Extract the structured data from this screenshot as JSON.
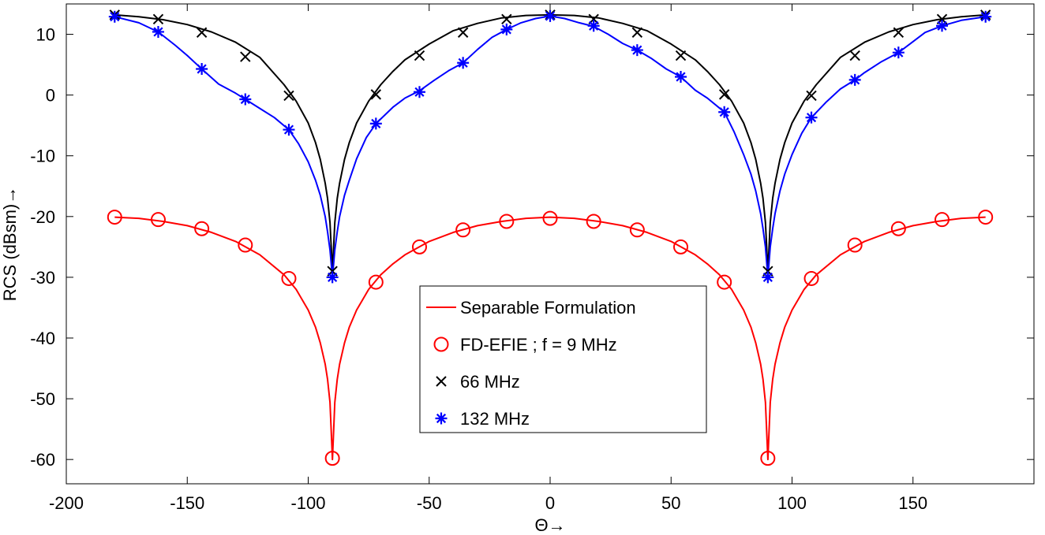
{
  "chart_data": {
    "type": "line",
    "title": "",
    "xlabel": "Θ→",
    "ylabel": "RCS (dBsm)→",
    "xlim": [
      -200,
      200
    ],
    "ylim": [
      -64,
      15
    ],
    "xticks": [
      -200,
      -150,
      -100,
      -50,
      0,
      50,
      100,
      150
    ],
    "xtick_labels": [
      "-200",
      "-150",
      "-100",
      "-50",
      "0",
      "50",
      "100",
      "150"
    ],
    "yticks": [
      10,
      0,
      -10,
      -20,
      -30,
      -40,
      -50,
      -60
    ],
    "ytick_labels": [
      "10",
      "0",
      "-10",
      "-20",
      "-30",
      "-40",
      "-50",
      "-60"
    ],
    "grid": false,
    "legend_position": "center-bottom",
    "legend": [
      {
        "label": "Separable Formulation",
        "marker": "line",
        "color": "#ff0000"
      },
      {
        "label": "FD-EFIE ; f = 9 MHz",
        "marker": "circle",
        "color": "#ff0000"
      },
      {
        "label": "66 MHz",
        "marker": "x",
        "color": "#000000"
      },
      {
        "label": "132 MHz",
        "marker": "star",
        "color": "#0000ff"
      }
    ],
    "series": [
      {
        "name": "Separable Formulation 9 MHz",
        "kind": "line",
        "color": "#ff0000",
        "x": [
          -180,
          -170,
          -160,
          -150,
          -140,
          -130,
          -120,
          -110,
          -105,
          -100,
          -97,
          -95,
          -93,
          -92,
          -91,
          -90,
          -89,
          -88,
          -87,
          -85,
          -83,
          -80,
          -75,
          -70,
          -65,
          -60,
          -50,
          -40,
          -30,
          -20,
          -10,
          0,
          10,
          20,
          30,
          40,
          50,
          60,
          65,
          70,
          75,
          80,
          83,
          85,
          87,
          88,
          89,
          90,
          91,
          92,
          93,
          95,
          97,
          100,
          105,
          110,
          120,
          130,
          140,
          150,
          160,
          170,
          180
        ],
        "y": [
          -20.1,
          -20.3,
          -20.8,
          -21.5,
          -22.6,
          -24.1,
          -26.3,
          -29.6,
          -32.0,
          -35.4,
          -38.2,
          -40.8,
          -44.3,
          -46.8,
          -50.6,
          -60.0,
          -50.6,
          -46.8,
          -44.3,
          -40.8,
          -38.2,
          -35.4,
          -32.0,
          -29.6,
          -27.8,
          -26.3,
          -24.1,
          -22.6,
          -21.5,
          -20.8,
          -20.3,
          -20.1,
          -20.3,
          -20.8,
          -21.5,
          -22.6,
          -24.1,
          -26.3,
          -27.8,
          -29.6,
          -32.0,
          -35.4,
          -38.2,
          -40.8,
          -44.3,
          -46.8,
          -50.6,
          -60.0,
          -50.6,
          -46.8,
          -44.3,
          -40.8,
          -38.2,
          -35.4,
          -32.0,
          -29.6,
          -26.3,
          -24.1,
          -22.6,
          -21.5,
          -20.8,
          -20.3,
          -20.1
        ]
      },
      {
        "name": "FD-EFIE ; f = 9 MHz",
        "kind": "markers",
        "marker": "circle",
        "color": "#ff0000",
        "x": [
          -180,
          -162,
          -144,
          -126,
          -108,
          -90,
          -72,
          -54,
          -36,
          -18,
          0,
          18,
          36,
          54,
          72,
          90,
          108,
          126,
          144,
          162,
          180
        ],
        "y": [
          -20.1,
          -20.5,
          -22.0,
          -24.7,
          -30.2,
          -59.8,
          -30.8,
          -25.0,
          -22.2,
          -20.8,
          -20.3,
          -20.8,
          -22.2,
          -25.0,
          -30.8,
          -59.8,
          -30.2,
          -24.7,
          -22.0,
          -20.5,
          -20.1
        ]
      },
      {
        "name": "Separable Formulation 66 MHz",
        "kind": "line",
        "color": "#000000",
        "x": [
          -180,
          -170,
          -160,
          -150,
          -140,
          -130,
          -120,
          -110,
          -105,
          -100,
          -97,
          -95,
          -93,
          -92,
          -91,
          -90,
          -89,
          -88,
          -87,
          -85,
          -83,
          -80,
          -75,
          -70,
          -65,
          -60,
          -50,
          -40,
          -30,
          -20,
          -10,
          0,
          10,
          20,
          30,
          40,
          50,
          60,
          65,
          70,
          75,
          80,
          83,
          85,
          87,
          88,
          89,
          90,
          91,
          92,
          93,
          95,
          97,
          100,
          105,
          110,
          120,
          130,
          140,
          150,
          160,
          170,
          180
        ],
        "y": [
          13.2,
          12.9,
          12.4,
          11.6,
          10.4,
          8.7,
          6.2,
          1.7,
          -1.0,
          -4.6,
          -7.8,
          -10.6,
          -14.5,
          -17.0,
          -21.0,
          -29.0,
          -21.0,
          -17.0,
          -14.5,
          -10.6,
          -7.8,
          -4.6,
          -1.0,
          1.7,
          3.9,
          5.8,
          8.4,
          10.6,
          11.8,
          12.7,
          13.1,
          13.2,
          13.1,
          12.7,
          11.8,
          10.6,
          8.4,
          5.8,
          3.9,
          1.7,
          -1.0,
          -4.6,
          -7.8,
          -10.6,
          -14.5,
          -17.0,
          -21.0,
          -29.0,
          -21.0,
          -17.0,
          -14.5,
          -10.6,
          -7.8,
          -4.6,
          -1.0,
          1.7,
          6.2,
          8.7,
          10.4,
          11.6,
          12.4,
          12.9,
          13.2
        ]
      },
      {
        "name": "66 MHz",
        "kind": "markers",
        "marker": "x",
        "color": "#000000",
        "x": [
          -180,
          -162,
          -144,
          -126,
          -108,
          -90,
          -72,
          -54,
          -36,
          -18,
          0,
          18,
          36,
          54,
          72,
          90,
          108,
          126,
          144,
          162,
          180
        ],
        "y": [
          13.2,
          12.5,
          10.3,
          6.3,
          -0.1,
          -29.0,
          0.1,
          6.5,
          10.3,
          12.5,
          13.2,
          12.5,
          10.3,
          6.5,
          0.1,
          -29.0,
          -0.1,
          6.5,
          10.3,
          12.5,
          13.2
        ]
      },
      {
        "name": "Separable Formulation 132 MHz",
        "kind": "line",
        "color": "#0000ff",
        "x": [
          -180,
          -170,
          -162,
          -155,
          -150,
          -144,
          -137,
          -130,
          -126,
          -120,
          -114,
          -108,
          -104,
          -100,
          -97,
          -95,
          -93,
          -92,
          -91,
          -90,
          -89,
          -88,
          -87,
          -85,
          -83,
          -80,
          -76,
          -72,
          -65,
          -60,
          -54,
          -48,
          -42,
          -36,
          -30,
          -24,
          -18,
          -12,
          -6,
          0,
          6,
          12,
          18,
          24,
          30,
          36,
          42,
          48,
          54,
          60,
          65,
          72,
          76,
          80,
          83,
          85,
          87,
          88,
          89,
          90,
          91,
          92,
          93,
          95,
          97,
          100,
          104,
          108,
          114,
          120,
          126,
          130,
          137,
          144,
          150,
          155,
          162,
          170,
          180
        ],
        "y": [
          12.9,
          11.9,
          10.4,
          8.2,
          6.5,
          4.3,
          1.8,
          0.3,
          -0.7,
          -2.2,
          -3.7,
          -5.7,
          -8.0,
          -11.0,
          -14.0,
          -16.5,
          -20.0,
          -22.5,
          -25.5,
          -30.0,
          -25.5,
          -22.5,
          -20.0,
          -16.5,
          -14.0,
          -10.5,
          -7.0,
          -4.7,
          -2.0,
          -0.5,
          0.7,
          2.4,
          4.0,
          5.3,
          7.5,
          9.5,
          10.8,
          11.9,
          12.6,
          13.0,
          12.6,
          11.9,
          11.3,
          10.0,
          8.5,
          7.4,
          6.0,
          4.3,
          3.0,
          0.8,
          -0.5,
          -2.8,
          -6.0,
          -9.8,
          -13.0,
          -15.8,
          -19.5,
          -22.0,
          -25.0,
          -30.0,
          -25.0,
          -22.0,
          -19.5,
          -15.8,
          -13.0,
          -9.8,
          -6.3,
          -3.7,
          -1.2,
          1.0,
          2.5,
          3.7,
          5.5,
          7.0,
          8.8,
          10.3,
          11.4,
          12.3,
          12.9
        ]
      },
      {
        "name": "132 MHz",
        "kind": "markers",
        "marker": "star",
        "color": "#0000ff",
        "x": [
          -180,
          -162,
          -144,
          -126,
          -108,
          -90,
          -72,
          -54,
          -36,
          -18,
          0,
          18,
          36,
          54,
          72,
          90,
          108,
          126,
          144,
          162,
          180
        ],
        "y": [
          12.9,
          10.4,
          4.3,
          -0.7,
          -5.7,
          -30.0,
          -4.7,
          0.5,
          5.3,
          10.8,
          13.0,
          11.4,
          7.4,
          3.0,
          -2.8,
          -30.0,
          -3.7,
          2.5,
          7.0,
          11.4,
          12.9
        ]
      }
    ]
  }
}
